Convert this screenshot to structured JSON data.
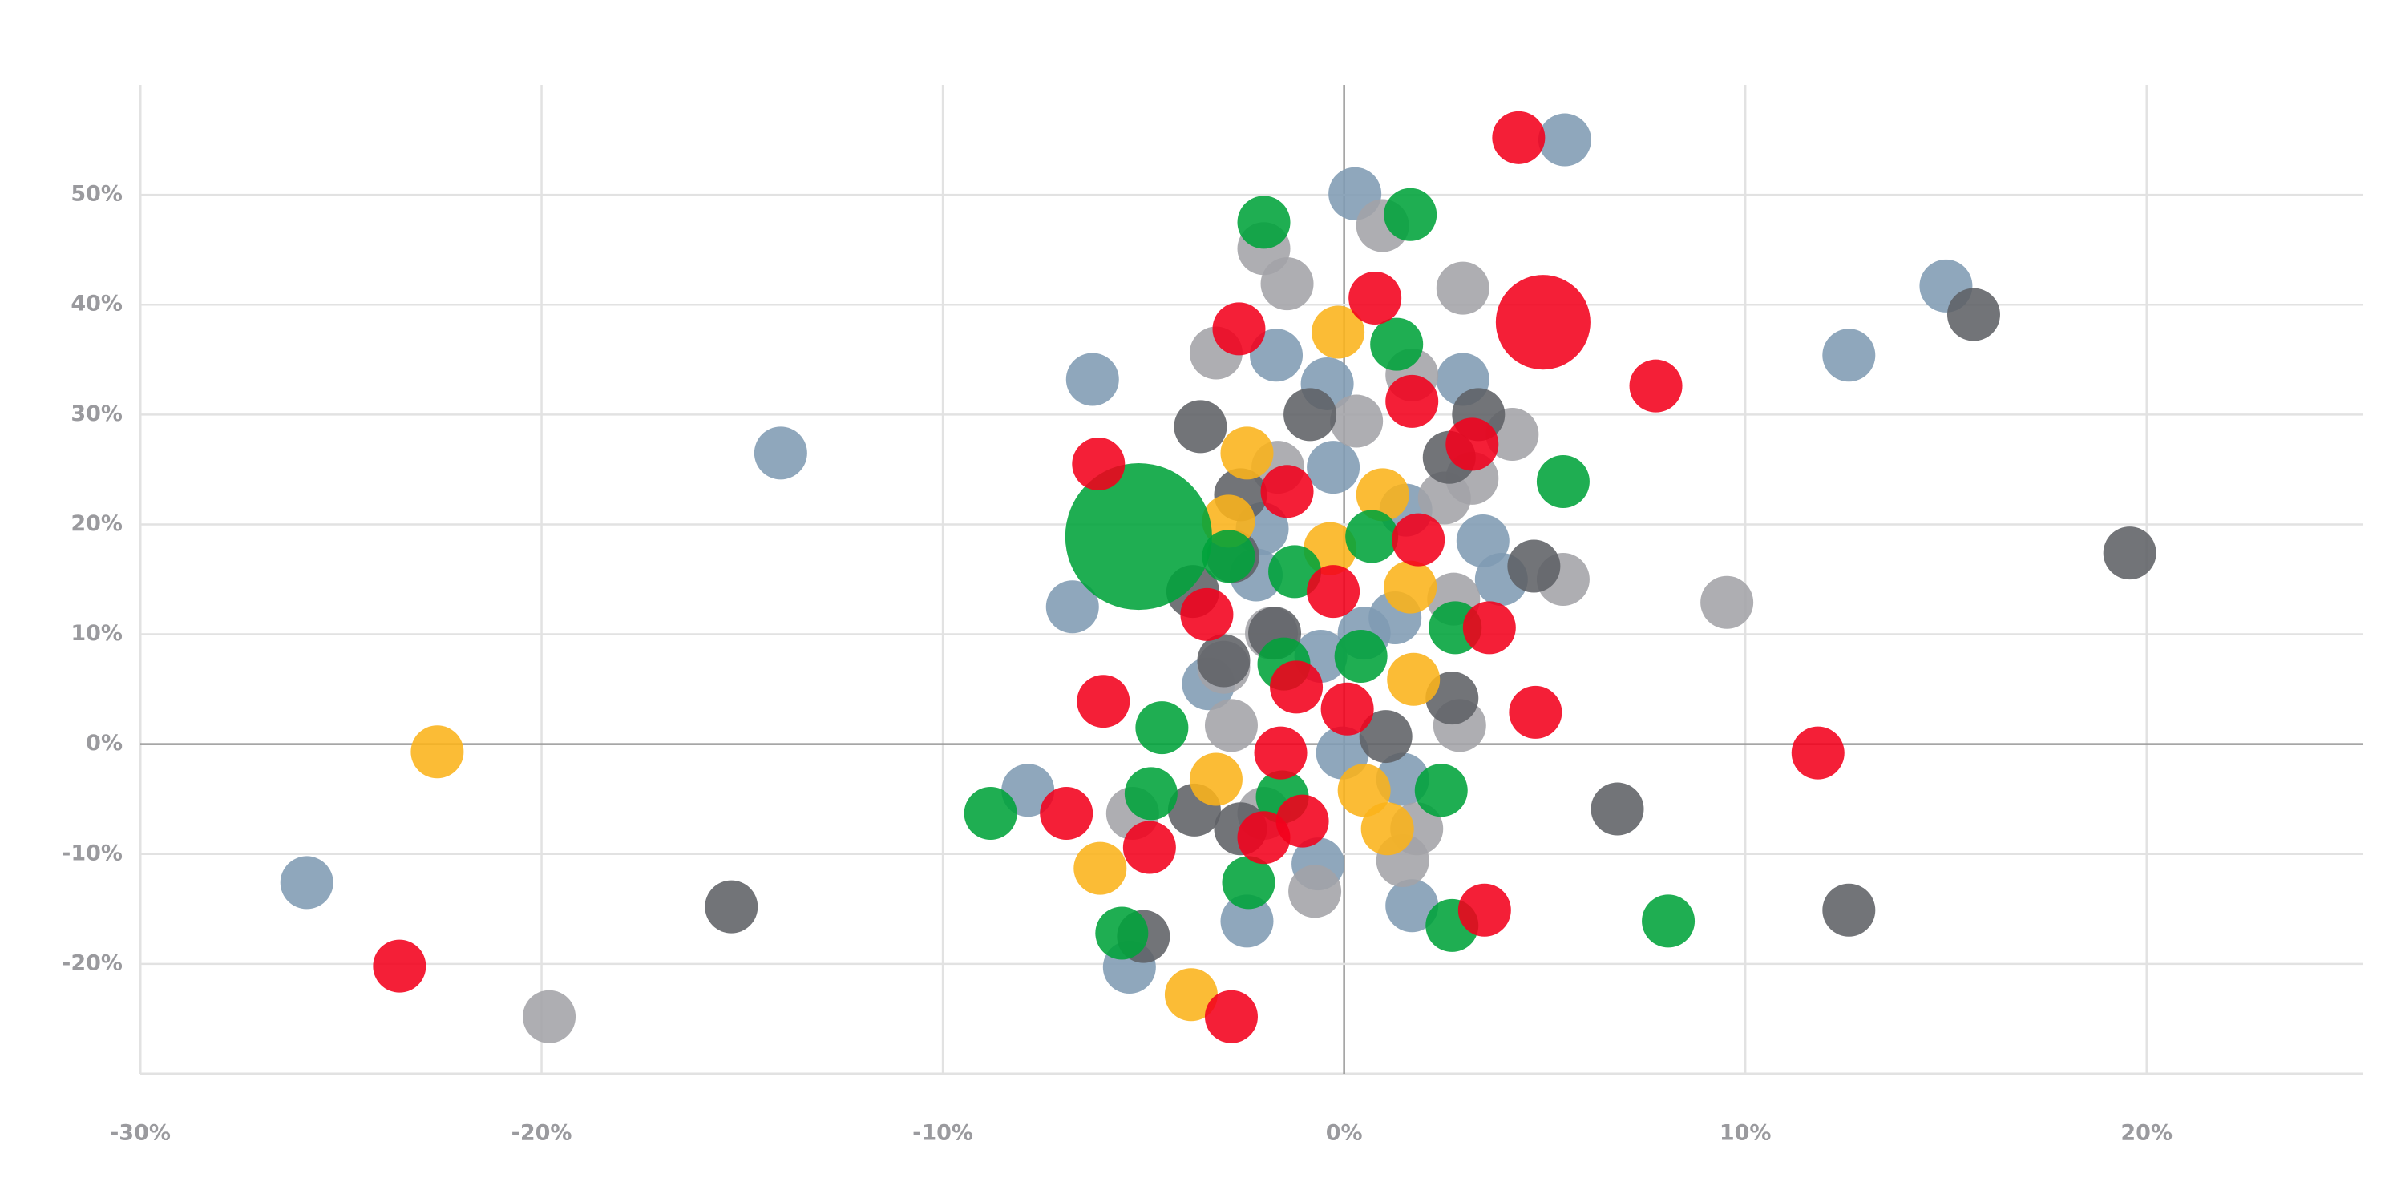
{
  "chart_data": {
    "type": "bubble",
    "xlim": [
      -30,
      25.4
    ],
    "ylim": [
      -30,
      60
    ],
    "xticks": [
      {
        "value": -30,
        "label": "-30%"
      },
      {
        "value": -20,
        "label": "-20%"
      },
      {
        "value": -10,
        "label": "-10%"
      },
      {
        "value": 0,
        "label": "0%"
      },
      {
        "value": 10,
        "label": "10%"
      },
      {
        "value": 20,
        "label": "20%"
      }
    ],
    "yticks": [
      {
        "value": -20,
        "label": "-20%"
      },
      {
        "value": -10,
        "label": "-10%"
      },
      {
        "value": 0,
        "label": "0%"
      },
      {
        "value": 10,
        "label": "10%"
      },
      {
        "value": 20,
        "label": "20%"
      },
      {
        "value": 30,
        "label": "30%"
      },
      {
        "value": 40,
        "label": "40%"
      },
      {
        "value": 50,
        "label": "50%"
      }
    ],
    "grid": true,
    "series": [
      {
        "color": "#7f9bb3",
        "x": [
          5.5,
          0.27,
          15.0,
          -1.69,
          12.58,
          -6.27,
          -0.42,
          2.96,
          -14.04,
          -0.27,
          1.54,
          -2.04,
          3.46,
          -6.77,
          3.92,
          -2.19,
          -3.38,
          0.5,
          -0.58,
          1.27,
          -7.88,
          -0.04,
          1.46,
          -25.85,
          -0.65,
          1.69,
          -2.42,
          -5.35
        ],
        "y": [
          55.0,
          50.1,
          41.7,
          35.4,
          35.4,
          33.2,
          32.8,
          33.2,
          26.5,
          25.2,
          21.3,
          19.6,
          18.5,
          12.5,
          15.0,
          15.4,
          5.5,
          10.1,
          8.0,
          11.5,
          -4.2,
          -0.8,
          -3.2,
          -12.6,
          -10.9,
          -14.7,
          -16.1,
          -20.3
        ],
        "sizes": [
          1,
          1,
          1,
          1,
          1,
          1,
          1,
          1,
          1,
          1,
          1,
          1,
          1,
          1,
          1,
          1,
          1,
          1,
          1,
          1,
          1,
          1,
          1,
          1,
          1,
          1,
          1,
          1
        ]
      },
      {
        "color": "#a3a3a7",
        "x": [
          -2.0,
          0.96,
          -1.42,
          2.96,
          -3.19,
          0.31,
          1.69,
          4.19,
          3.19,
          -1.65,
          2.5,
          5.46,
          2.73,
          -1.81,
          9.54,
          -3.0,
          -2.81,
          2.88,
          -5.27,
          -2.0,
          1.81,
          1.46,
          -0.73,
          -19.81
        ],
        "y": [
          45.1,
          47.2,
          41.9,
          41.5,
          35.6,
          29.4,
          33.6,
          28.2,
          24.2,
          25.2,
          22.4,
          15.0,
          13.2,
          10.1,
          12.9,
          7.0,
          1.7,
          1.7,
          -6.3,
          -6.3,
          -7.7,
          -10.6,
          -13.4,
          -24.8
        ],
        "sizes": [
          1,
          1,
          1,
          1,
          1,
          1,
          1,
          1,
          1,
          1,
          1,
          1,
          1,
          1,
          1,
          1,
          1,
          1,
          1,
          1,
          1,
          1,
          1,
          1
        ]
      },
      {
        "color": "#5e6165",
        "x": [
          15.69,
          -0.85,
          -3.58,
          3.35,
          2.62,
          -2.58,
          4.73,
          19.58,
          -3.77,
          -2.77,
          -1.73,
          -3.0,
          2.69,
          1.04,
          6.81,
          -3.73,
          -2.58,
          -15.27,
          12.58,
          -5.0
        ],
        "y": [
          39.1,
          30.0,
          28.9,
          30.0,
          26.1,
          22.7,
          16.2,
          17.4,
          13.9,
          17.1,
          10.1,
          7.6,
          4.2,
          0.7,
          -5.9,
          -6.0,
          -7.7,
          -14.8,
          -15.1,
          -17.5
        ],
        "sizes": [
          1,
          1,
          1,
          1,
          1,
          1,
          1,
          1,
          1,
          1,
          1,
          1,
          1,
          1,
          1,
          1,
          1,
          1,
          1,
          1
        ]
      },
      {
        "color": "#fbb31a",
        "x": [
          -0.15,
          -2.42,
          0.96,
          -0.35,
          -2.88,
          1.65,
          1.73,
          -22.6,
          -3.19,
          0.5,
          1.08,
          -6.08,
          -3.81
        ],
        "y": [
          37.5,
          26.5,
          22.7,
          17.8,
          20.3,
          14.3,
          5.9,
          -0.7,
          -3.2,
          -4.2,
          -7.7,
          -11.3,
          -22.8
        ],
        "sizes": [
          1,
          1,
          1,
          1,
          1,
          1,
          1,
          1,
          1,
          1,
          1,
          1,
          1
        ]
      },
      {
        "color": "#00a33a",
        "x": [
          -2.0,
          1.65,
          1.31,
          5.46,
          -5.12,
          0.69,
          -1.23,
          -2.88,
          2.77,
          -1.5,
          0.42,
          -4.54,
          -8.81,
          -4.81,
          2.42,
          -1.54,
          -2.38,
          -5.54,
          2.69,
          8.08
        ],
        "y": [
          47.5,
          48.2,
          36.4,
          23.9,
          18.9,
          18.9,
          15.7,
          17.1,
          10.6,
          7.3,
          8.0,
          1.5,
          -6.3,
          -4.5,
          -4.2,
          -4.8,
          -12.6,
          -17.2,
          -16.5,
          -16.1
        ],
        "sizes": [
          1,
          1,
          1,
          1,
          7.7,
          1,
          1,
          1,
          1,
          1,
          1,
          1,
          1,
          1,
          1,
          1,
          1,
          1,
          1,
          1
        ]
      },
      {
        "color": "#f2001b",
        "x": [
          4.35,
          4.96,
          0.77,
          -2.62,
          7.77,
          1.69,
          -6.12,
          3.19,
          -1.42,
          1.85,
          -0.27,
          -3.42,
          3.62,
          -6.0,
          -1.19,
          0.08,
          4.77,
          11.81,
          -1.58,
          -6.92,
          -1.04,
          -2.0,
          -4.85,
          3.5,
          -23.54,
          -2.81
        ],
        "y": [
          55.2,
          38.4,
          40.6,
          37.8,
          32.6,
          31.2,
          25.5,
          27.3,
          23.0,
          18.6,
          13.9,
          11.8,
          10.6,
          3.9,
          5.2,
          3.2,
          2.9,
          -0.8,
          -0.8,
          -6.3,
          -7.0,
          -8.5,
          -9.4,
          -15.1,
          -20.2,
          -24.8
        ],
        "sizes": [
          1,
          3.2,
          1,
          1,
          1,
          1,
          1,
          1,
          1,
          1,
          1,
          1,
          1,
          1,
          1,
          1,
          1,
          1,
          1,
          1,
          1,
          1,
          1,
          1,
          1,
          1
        ]
      }
    ]
  }
}
